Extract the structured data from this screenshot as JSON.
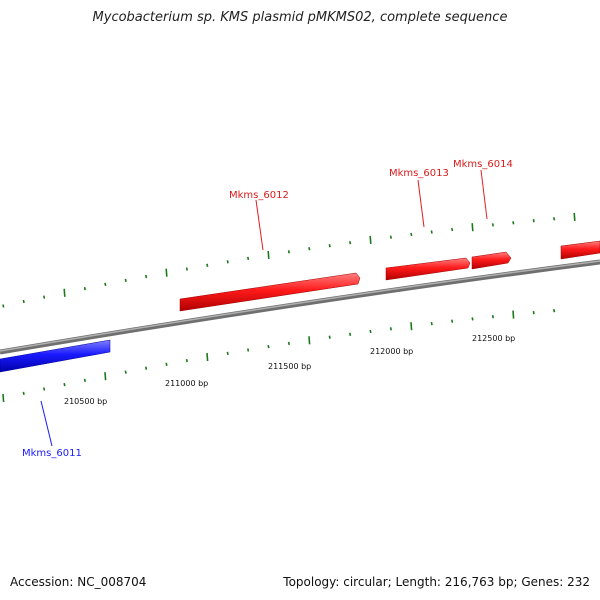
{
  "title": "Mycobacterium sp. KMS plasmid pMKMS02, complete sequence",
  "footer": {
    "accession": "Accession: NC_008704",
    "summary": "Topology: circular; Length: 216,763 bp; Genes: 232"
  },
  "colors": {
    "forward_gene": "#ff1a1a",
    "reverse_gene": "#1a1aff",
    "backbone": "#808080",
    "ticks": "#1b7a1b"
  },
  "genes": [
    {
      "name": "Mkms_6011",
      "strand": "reverse"
    },
    {
      "name": "Mkms_6012",
      "strand": "forward"
    },
    {
      "name": "Mkms_6013",
      "strand": "forward"
    },
    {
      "name": "Mkms_6014",
      "strand": "forward"
    }
  ],
  "scale_labels": [
    "210500 bp",
    "211000 bp",
    "211500 bp",
    "212000 bp",
    "212500 bp"
  ]
}
